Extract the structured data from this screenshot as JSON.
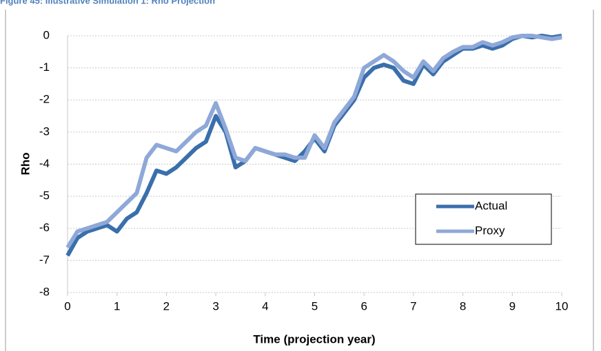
{
  "chart_data": {
    "type": "line",
    "title": "Figure 45: Illustrative Simulation 1: Rho Projection",
    "x_label": "Time (projection year)",
    "y_label": "Rho",
    "x": [
      0,
      0.2,
      0.4,
      0.6,
      0.8,
      1,
      1.2,
      1.4,
      1.6,
      1.8,
      2,
      2.2,
      2.4,
      2.6,
      2.8,
      3,
      3.2,
      3.4,
      3.6,
      3.8,
      4,
      4.2,
      4.4,
      4.6,
      4.8,
      5,
      5.2,
      5.4,
      5.6,
      5.8,
      6,
      6.2,
      6.4,
      6.6,
      6.8,
      7,
      7.2,
      7.4,
      7.6,
      7.8,
      8,
      8.2,
      8.4,
      8.6,
      8.8,
      9,
      9.2,
      9.4,
      9.6,
      9.8,
      10
    ],
    "series": [
      {
        "name": "Actual",
        "color": "#3a6fab",
        "values": [
          -6.85,
          -6.3,
          -6.1,
          -6.0,
          -5.9,
          -6.1,
          -5.7,
          -5.5,
          -4.9,
          -4.2,
          -4.3,
          -4.1,
          -3.8,
          -3.5,
          -3.3,
          -2.5,
          -3.0,
          -4.1,
          -3.9,
          -3.5,
          -3.6,
          -3.7,
          -3.8,
          -3.9,
          -3.6,
          -3.2,
          -3.6,
          -2.8,
          -2.4,
          -2.0,
          -1.3,
          -1.0,
          -0.9,
          -1.0,
          -1.4,
          -1.5,
          -0.9,
          -1.2,
          -0.8,
          -0.6,
          -0.4,
          -0.4,
          -0.3,
          -0.4,
          -0.3,
          -0.1,
          0.0,
          -0.05,
          0.0,
          -0.05,
          0.0
        ]
      },
      {
        "name": "Proxy",
        "color": "#8ea8d8",
        "values": [
          -6.6,
          -6.1,
          -6.0,
          -5.9,
          -5.8,
          -5.5,
          -5.2,
          -4.9,
          -3.8,
          -3.4,
          -3.5,
          -3.6,
          -3.3,
          -3.0,
          -2.8,
          -2.1,
          -2.9,
          -3.8,
          -3.9,
          -3.5,
          -3.6,
          -3.7,
          -3.7,
          -3.8,
          -3.8,
          -3.1,
          -3.5,
          -2.7,
          -2.3,
          -1.9,
          -1.0,
          -0.8,
          -0.6,
          -0.8,
          -1.1,
          -1.3,
          -0.8,
          -1.1,
          -0.7,
          -0.5,
          -0.35,
          -0.35,
          -0.2,
          -0.3,
          -0.2,
          -0.05,
          0.0,
          0.0,
          -0.05,
          -0.1,
          -0.05
        ]
      }
    ],
    "xlim": [
      0,
      10
    ],
    "xticks": [
      0,
      1,
      2,
      3,
      4,
      5,
      6,
      7,
      8,
      9,
      10
    ],
    "ylim": [
      -8,
      0
    ],
    "yticks": [
      0,
      -1,
      -2,
      -3,
      -4,
      -5,
      -6,
      -7,
      -8
    ],
    "grid": true,
    "legend": "right"
  }
}
